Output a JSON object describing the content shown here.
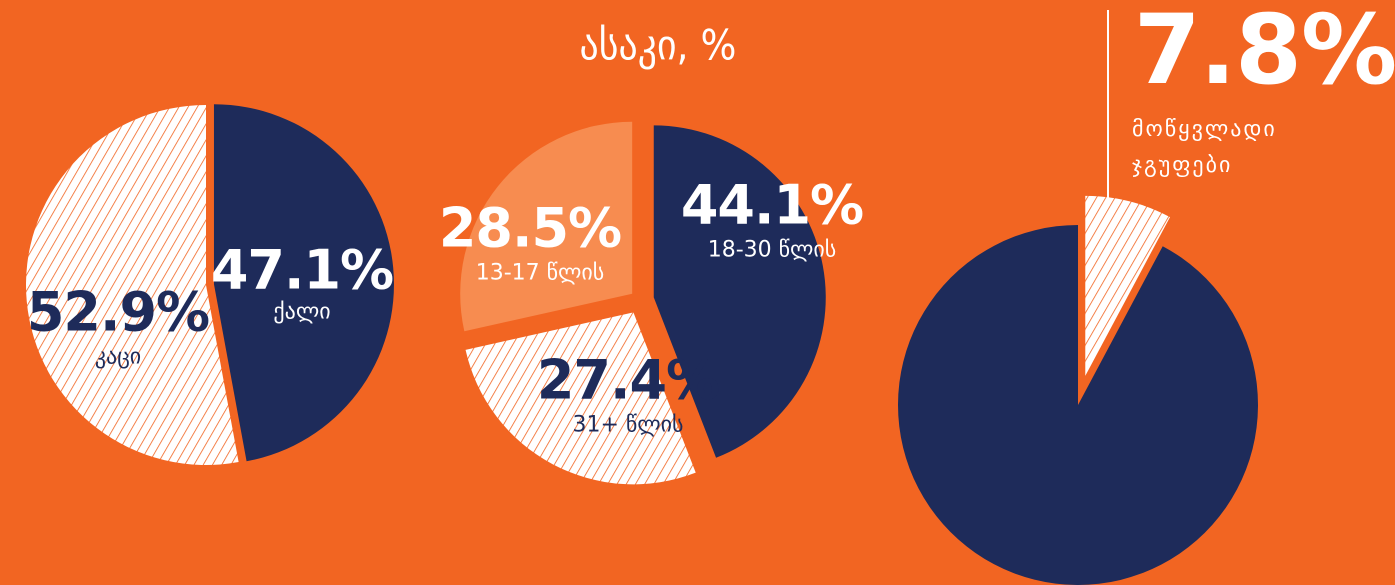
{
  "chart_data": [
    {
      "type": "pie",
      "categories": [
        "ქალი",
        "კაცი"
      ],
      "values": [
        47.1,
        52.9
      ],
      "value_labels": [
        "47.1%",
        "52.9%"
      ],
      "colors": [
        "#1e2b5a",
        "#ffffff"
      ],
      "hatch": [
        false,
        true
      ]
    },
    {
      "type": "pie",
      "title": "ასაკი, %",
      "categories": [
        "18-30 წლის",
        "31+ წლის",
        "13-17 წლის"
      ],
      "values": [
        44.1,
        27.4,
        28.5
      ],
      "value_labels": [
        "44.1%",
        "27.4%",
        "28.5%"
      ],
      "colors": [
        "#1e2b5a",
        "#ffffff",
        "#f78c50"
      ],
      "hatch": [
        false,
        true,
        false
      ]
    },
    {
      "type": "pie",
      "categories": [
        "მოწყვლადი ჯგუფები",
        null
      ],
      "values": [
        7.8,
        92.2
      ],
      "value_labels": [
        "7.8%",
        null
      ],
      "colors": [
        "#ffffff",
        "#1e2b5a"
      ],
      "hatch": [
        true,
        false
      ]
    }
  ]
}
